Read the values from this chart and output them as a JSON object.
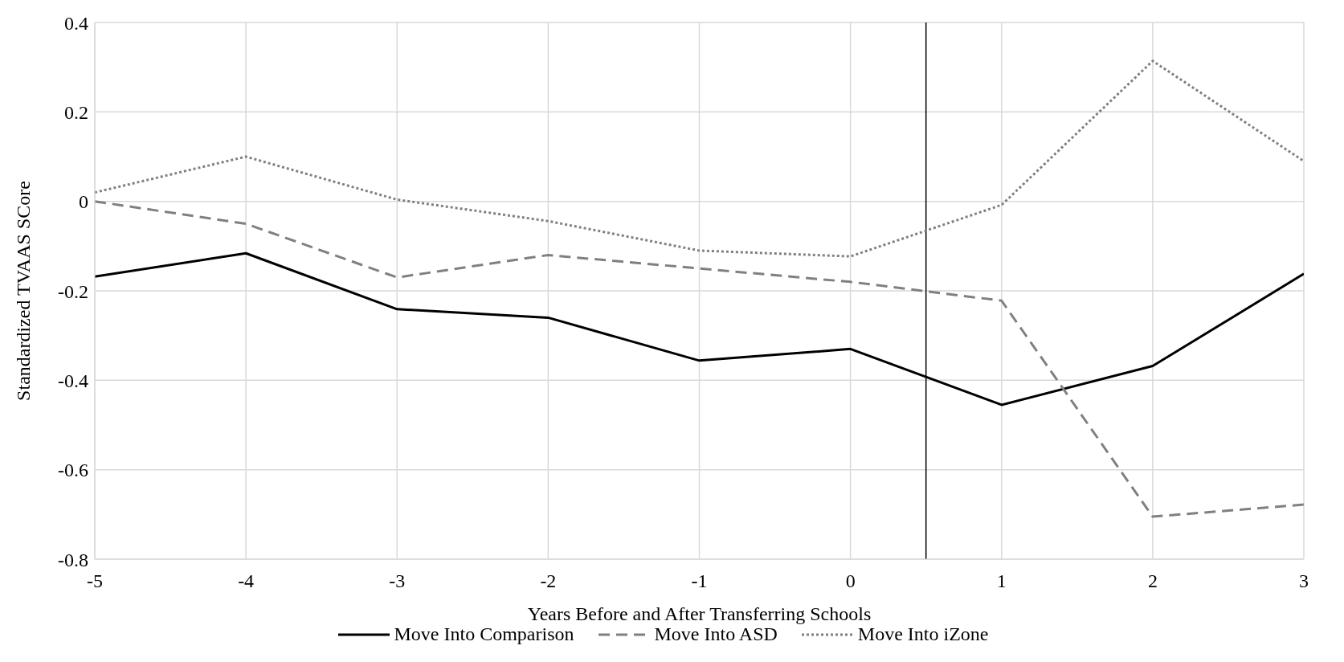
{
  "chart_data": {
    "type": "line",
    "xlabel": "Years Before and After Transferring Schools",
    "ylabel": "Standardized TVAAS SCore",
    "x": [
      -5,
      -4,
      -3,
      -2,
      -1,
      0,
      1,
      2,
      3
    ],
    "series": [
      {
        "name": "Move Into Comparison",
        "color": "#000000",
        "line_style": "solid",
        "values": [
          -0.168,
          -0.116,
          -0.241,
          -0.26,
          -0.356,
          -0.33,
          -0.455,
          -0.368,
          -0.162
        ]
      },
      {
        "name": "Move Into ASD",
        "color": "#808080",
        "line_style": "dashed",
        "values": [
          0,
          -0.05,
          -0.17,
          -0.12,
          -0.15,
          -0.18,
          -0.222,
          -0.705,
          -0.678
        ]
      },
      {
        "name": "Move Into iZone",
        "color": "#808080",
        "line_style": "dotted",
        "values": [
          0.02,
          0.1,
          0.004,
          -0.044,
          -0.11,
          -0.123,
          -0.008,
          0.314,
          0.09
        ]
      }
    ],
    "xlim": [
      -5,
      3
    ],
    "xticks": [
      -5,
      -4,
      -3,
      -2,
      -1,
      0,
      1,
      2,
      3
    ],
    "ylim": [
      -0.8,
      0.4
    ],
    "yticks": [
      -0.8,
      -0.6,
      -0.4,
      -0.2,
      0,
      0.2,
      0.4
    ],
    "ref_lines": [
      {
        "axis": "x",
        "value": 0.5,
        "color": "#000000"
      }
    ],
    "grid": true,
    "legend": "bottom",
    "marker": "none"
  }
}
